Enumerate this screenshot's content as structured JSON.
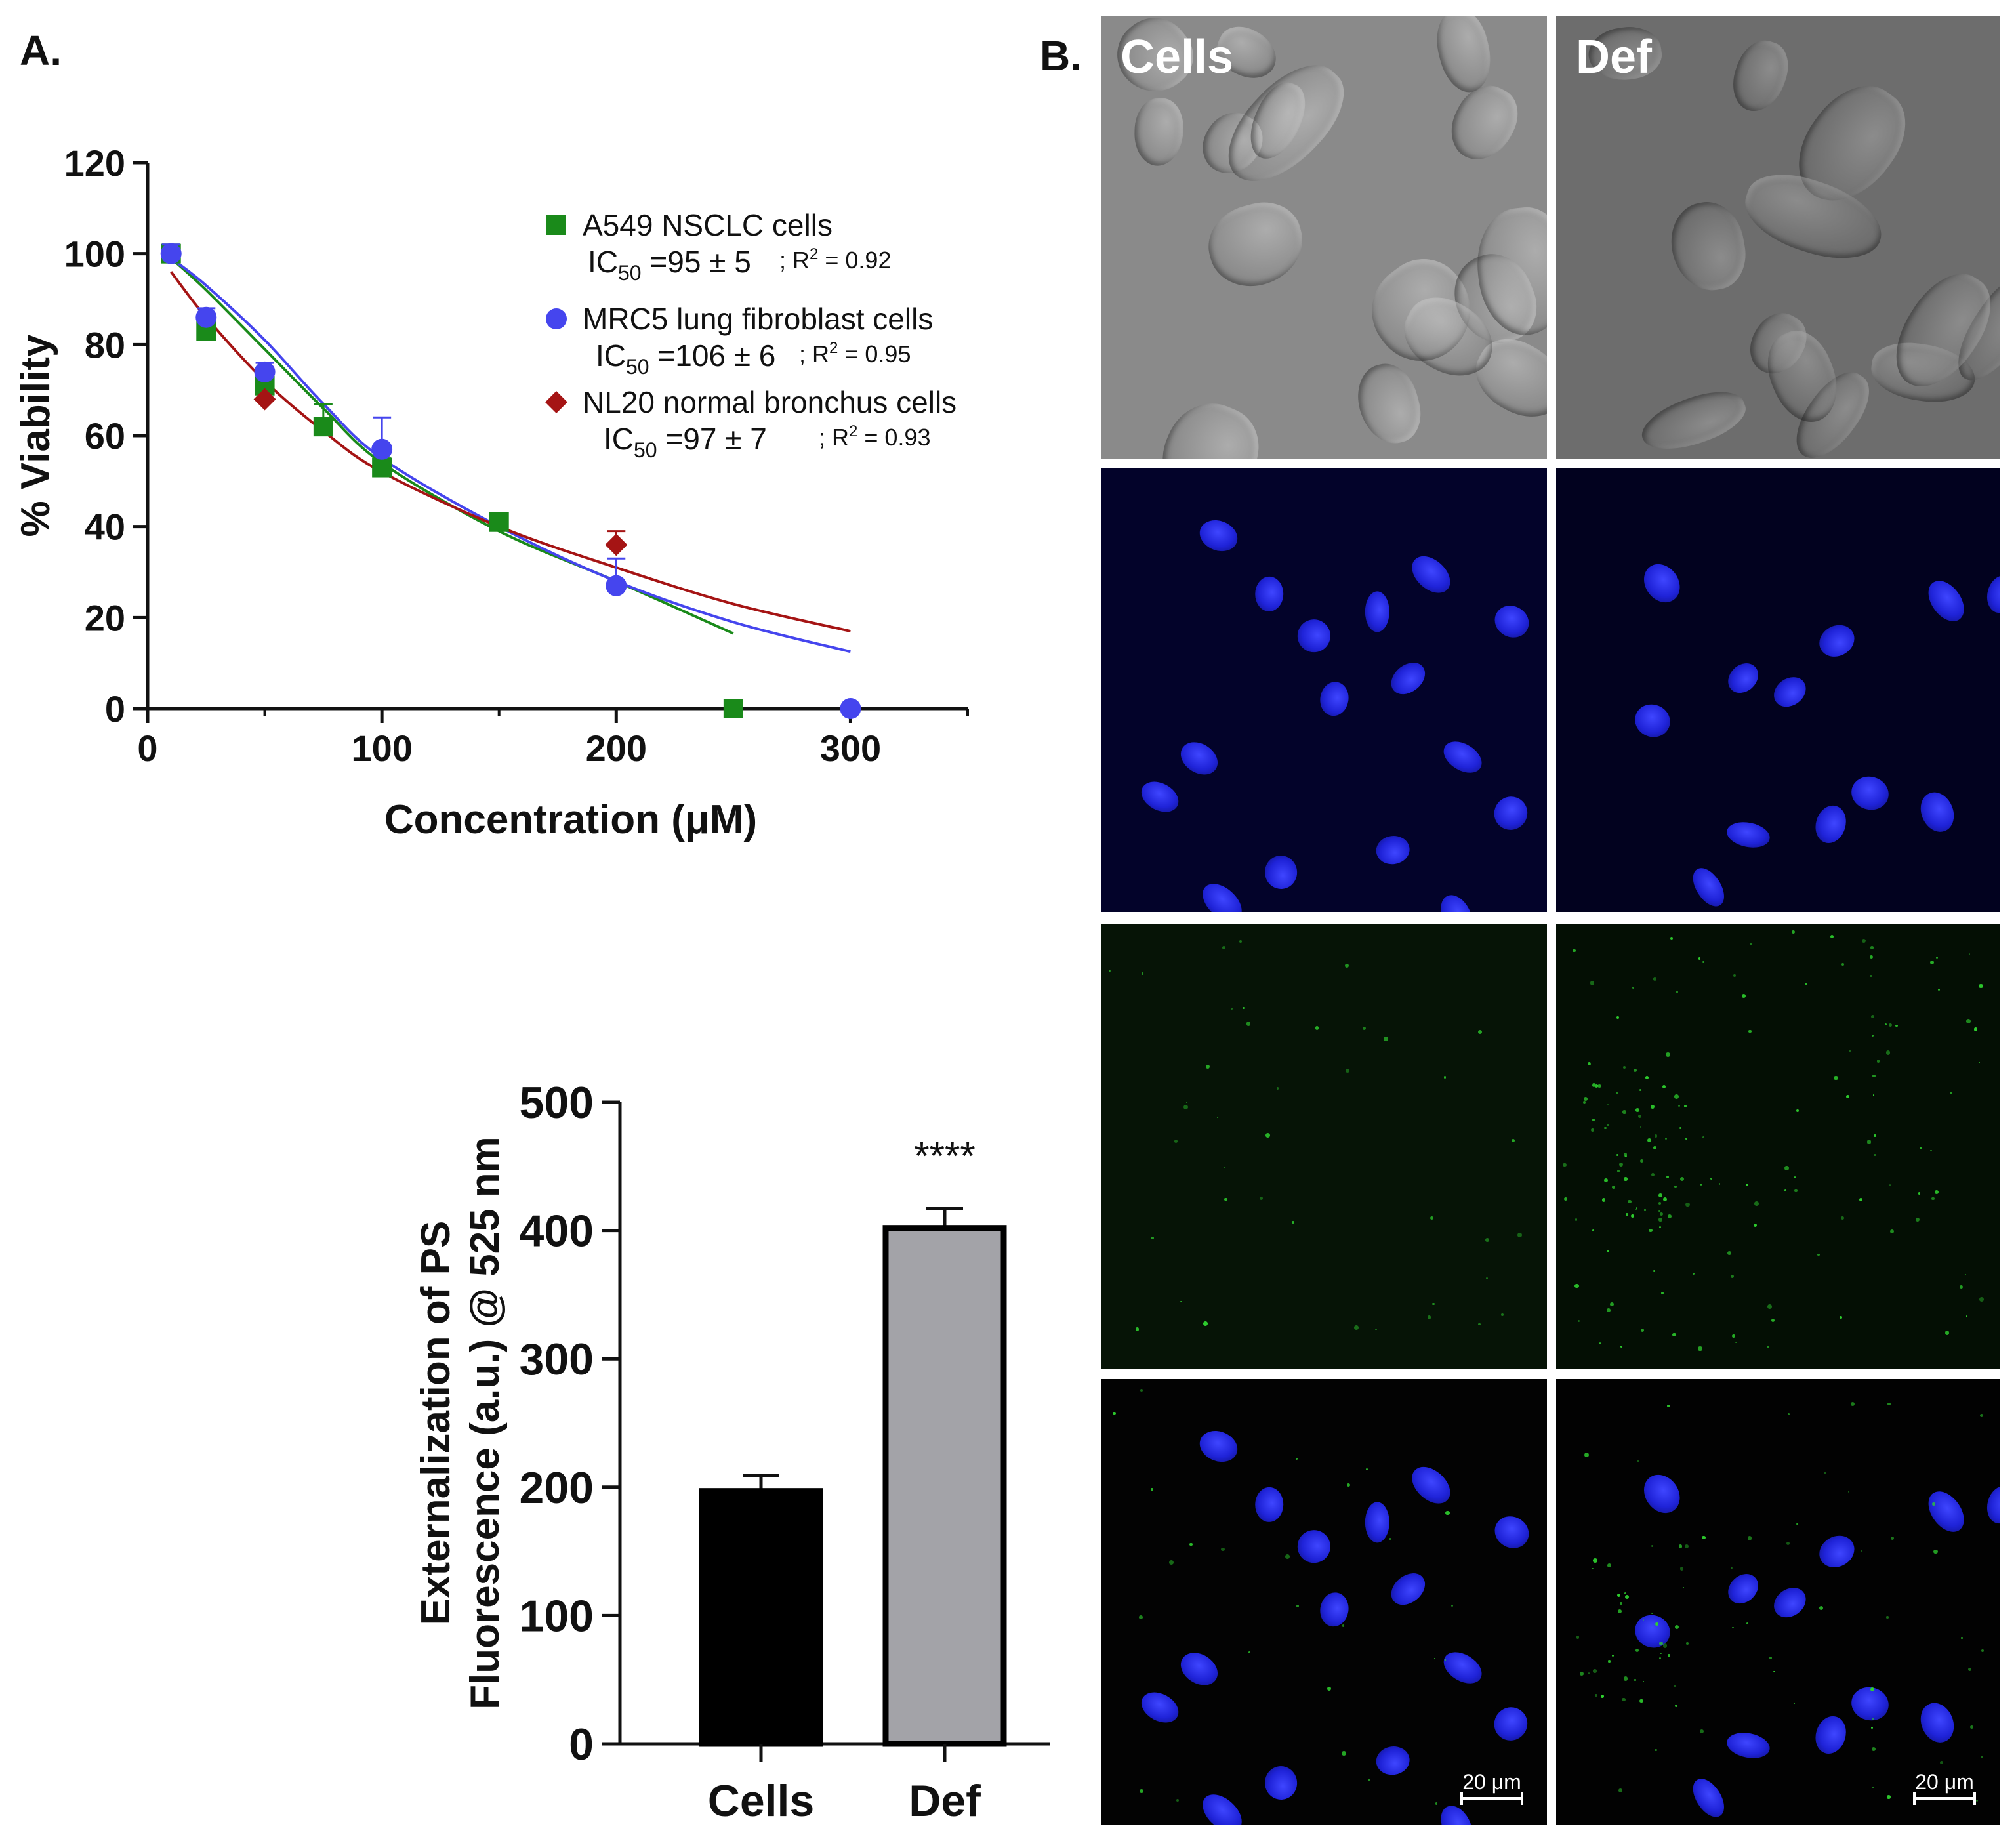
{
  "panels": {
    "a_label": "A.",
    "b_label": "B."
  },
  "chart_data": [
    {
      "type": "scatter",
      "title": "",
      "xlabel": "Concentration (μM)",
      "ylabel": "% Viability",
      "xlim": [
        0,
        350
      ],
      "ylim": [
        0,
        120
      ],
      "xticks": [
        0,
        100,
        200,
        300
      ],
      "yticks": [
        0,
        20,
        40,
        60,
        80,
        100,
        120
      ],
      "legend_position": "top-right",
      "series": [
        {
          "name": "A549 NSCLC cells",
          "marker": "square",
          "color": "#1a8a1a",
          "ic50_text": "IC50 =95 ± 5",
          "r2_text": "; R2 = 0.92",
          "points": [
            [
              10,
              100
            ],
            [
              25,
              83
            ],
            [
              50,
              71
            ],
            [
              75,
              62
            ],
            [
              100,
              53
            ],
            [
              150,
              41
            ],
            [
              250,
              0
            ]
          ],
          "errors": [
            2,
            2,
            2,
            5,
            2,
            2,
            0
          ],
          "fit": [
            [
              10,
              99
            ],
            [
              25,
              92
            ],
            [
              50,
              79
            ],
            [
              75,
              66
            ],
            [
              100,
              54
            ],
            [
              150,
              39
            ],
            [
              200,
              28
            ],
            [
              250,
              16.5
            ]
          ]
        },
        {
          "name": "MRC5 lung fibroblast cells",
          "marker": "circle",
          "color": "#4545ee",
          "ic50_text": "IC50 =106 ± 6",
          "r2_text": "; R2 = 0.95",
          "points": [
            [
              10,
              100
            ],
            [
              25,
              86
            ],
            [
              50,
              74
            ],
            [
              100,
              57
            ],
            [
              200,
              27
            ],
            [
              300,
              0
            ]
          ],
          "errors": [
            2,
            2,
            2,
            7,
            6,
            0
          ],
          "fit": [
            [
              10,
              99
            ],
            [
              25,
              93
            ],
            [
              50,
              81
            ],
            [
              75,
              67
            ],
            [
              100,
              55
            ],
            [
              150,
              40
            ],
            [
              200,
              28
            ],
            [
              250,
              19
            ],
            [
              300,
              12.5
            ]
          ]
        },
        {
          "name": "NL20 normal bronchus cells",
          "marker": "diamond",
          "color": "#a51414",
          "ic50_text": "IC50 =97 ± 7",
          "r2_text": "; R2 = 0.93",
          "points": [
            [
              50,
              68
            ],
            [
              200,
              36
            ]
          ],
          "errors": [
            0,
            3
          ],
          "fit": [
            [
              10,
              96
            ],
            [
              25,
              86
            ],
            [
              50,
              72
            ],
            [
              75,
              61
            ],
            [
              100,
              52
            ],
            [
              150,
              40
            ],
            [
              200,
              31
            ],
            [
              250,
              23
            ],
            [
              300,
              17
            ]
          ]
        }
      ]
    },
    {
      "type": "bar",
      "title": "",
      "xlabel": "",
      "ylabel": [
        "Externalization of PS",
        "Fluorescence (a.u.) @ 525 nm"
      ],
      "categories": [
        "Cells",
        "Def"
      ],
      "values": [
        197,
        402
      ],
      "errors": [
        12,
        15
      ],
      "colors": [
        "#000000",
        "#a3a3a8"
      ],
      "ylim": [
        0,
        500
      ],
      "yticks": [
        0,
        100,
        200,
        300,
        400,
        500
      ],
      "annotation": "****"
    }
  ],
  "microscopy": {
    "column_labels": [
      "Cells",
      "Def"
    ],
    "scale_bar_label": "20 μm"
  }
}
